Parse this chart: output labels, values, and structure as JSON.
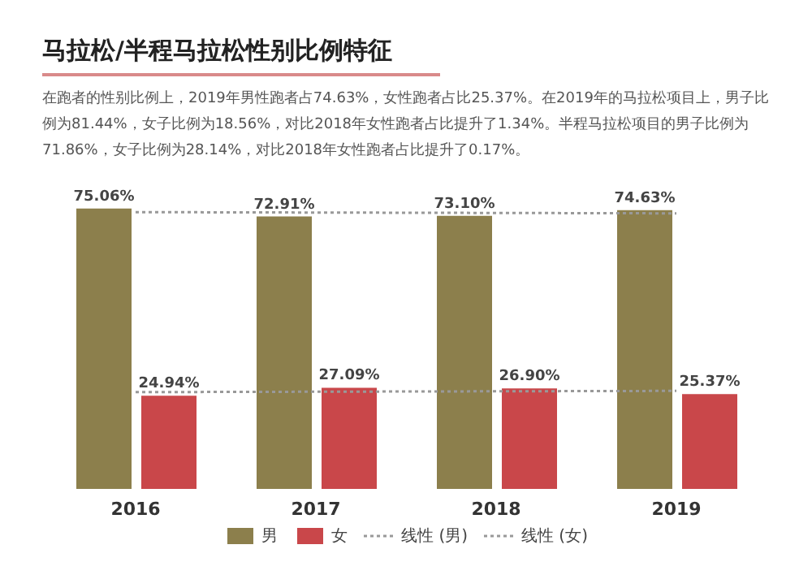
{
  "chart_data": {
    "type": "bar",
    "title": "马拉松/半程马拉松性别比例特征",
    "subtitle": "在跑者的性别比例上，2019年男性跑者占74.63%，女性跑者占比25.37%。在2019年的马拉松项目上，男子比例为81.44%，女子比例为18.56%，对比2018年女性跑者占比提升了1.34%。半程马拉松项目的男子比例为71.86%，女子比例为28.14%，对比2018年女性跑者占比提升了0.17%。",
    "categories": [
      "2016",
      "2017",
      "2018",
      "2019"
    ],
    "series": [
      {
        "name": "男",
        "color": "#8c7f4c",
        "values": [
          75.06,
          72.91,
          73.1,
          74.63
        ],
        "value_labels": [
          "75.06%",
          "72.91%",
          "73.10%",
          "74.63%"
        ]
      },
      {
        "name": "女",
        "color": "#c9474a",
        "values": [
          24.94,
          27.09,
          26.9,
          25.37
        ],
        "value_labels": [
          "24.94%",
          "27.09%",
          "26.90%",
          "25.37%"
        ]
      },
      {
        "name": "线性 (男)",
        "type": "line",
        "color": "#999999",
        "line_style": "dotted",
        "values": [
          74.09,
          73.98,
          73.87,
          73.76
        ]
      },
      {
        "name": "线性 (女)",
        "type": "line",
        "color": "#999999",
        "line_style": "dotted",
        "values": [
          25.91,
          26.02,
          26.13,
          26.24
        ]
      }
    ],
    "grid": false,
    "legend": "bottom"
  }
}
